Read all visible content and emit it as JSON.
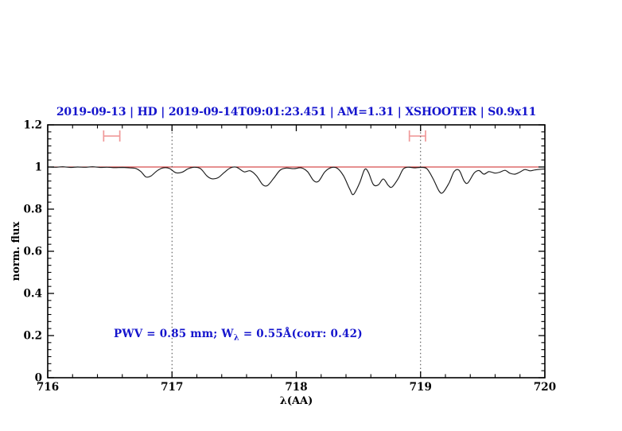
{
  "figure": {
    "title": "2019-09-13 | HD | 2019-09-14T09:01:23.451 | AM=1.31 | XSHOOTER | S0.9x11",
    "title_color": "#1515cd",
    "annotation": {
      "pre": "PWV = 0.85 mm; W",
      "sub": "λ",
      "post": " = 0.55Å(corr: 0.42)",
      "color": "#1515cd"
    }
  },
  "chart_data": {
    "type": "line",
    "title": "2019-09-13 | HD | 2019-09-14T09:01:23.451 | AM=1.31 | XSHOOTER | S0.9x11",
    "xlabel": "λ(AA)",
    "ylabel": "norm. flux",
    "xlim": [
      716,
      720
    ],
    "ylim": [
      0,
      1.2
    ],
    "x_major_ticks": [
      716,
      717,
      718,
      719,
      720
    ],
    "x_tick_labels": [
      "716",
      "717",
      "718",
      "719",
      "720"
    ],
    "x_minor_step": 0.2,
    "y_major_ticks": [
      0,
      0.2,
      0.4,
      0.6,
      0.8,
      1,
      1.2
    ],
    "y_tick_labels": [
      "0",
      "0.2",
      "0.4",
      "0.6",
      "0.8",
      "1",
      "1.2"
    ],
    "y_minor_step": 0.033333,
    "grid": "off",
    "legend": "none",
    "background": "#ffffff",
    "frame_color": "#000000",
    "guide_lines": {
      "x_values": [
        717,
        719
      ],
      "style": "dotted",
      "color": "#444444"
    },
    "continuum_line": {
      "y": 1.0,
      "color": "#cc2222"
    },
    "range_markers": [
      {
        "x1": 716.45,
        "x2": 716.58,
        "y": 1.147,
        "color": "#f09a9a"
      },
      {
        "x1": 718.91,
        "x2": 719.04,
        "y": 1.147,
        "color": "#f09a9a"
      }
    ],
    "series": [
      {
        "name": "observed-spectrum",
        "color": "#1b1b1b",
        "points": [
          [
            716.0,
            1.0
          ],
          [
            716.06,
            0.999
          ],
          [
            716.12,
            1.001
          ],
          [
            716.18,
            0.998
          ],
          [
            716.24,
            1.0
          ],
          [
            716.3,
            0.999
          ],
          [
            716.36,
            1.001
          ],
          [
            716.42,
            0.998
          ],
          [
            716.48,
            0.999
          ],
          [
            716.54,
            0.997
          ],
          [
            716.6,
            0.998
          ],
          [
            716.66,
            0.996
          ],
          [
            716.71,
            0.993
          ],
          [
            716.75,
            0.978
          ],
          [
            716.79,
            0.953
          ],
          [
            716.83,
            0.957
          ],
          [
            716.88,
            0.982
          ],
          [
            716.93,
            0.996
          ],
          [
            716.98,
            0.993
          ],
          [
            717.03,
            0.973
          ],
          [
            717.08,
            0.975
          ],
          [
            717.13,
            0.992
          ],
          [
            717.18,
            0.999
          ],
          [
            717.23,
            0.992
          ],
          [
            717.28,
            0.958
          ],
          [
            717.32,
            0.944
          ],
          [
            717.37,
            0.949
          ],
          [
            717.42,
            0.974
          ],
          [
            717.47,
            0.996
          ],
          [
            717.52,
            0.999
          ],
          [
            717.58,
            0.977
          ],
          [
            717.63,
            0.982
          ],
          [
            717.68,
            0.958
          ],
          [
            717.73,
            0.916
          ],
          [
            717.77,
            0.913
          ],
          [
            717.82,
            0.948
          ],
          [
            717.87,
            0.985
          ],
          [
            717.92,
            0.995
          ],
          [
            717.98,
            0.992
          ],
          [
            718.04,
            0.996
          ],
          [
            718.09,
            0.978
          ],
          [
            718.14,
            0.935
          ],
          [
            718.18,
            0.933
          ],
          [
            718.23,
            0.977
          ],
          [
            718.28,
            0.997
          ],
          [
            718.33,
            0.994
          ],
          [
            718.38,
            0.958
          ],
          [
            718.43,
            0.895
          ],
          [
            718.46,
            0.87
          ],
          [
            718.51,
            0.925
          ],
          [
            718.55,
            0.988
          ],
          [
            718.58,
            0.975
          ],
          [
            718.62,
            0.917
          ],
          [
            718.66,
            0.915
          ],
          [
            718.7,
            0.943
          ],
          [
            718.74,
            0.913
          ],
          [
            718.77,
            0.905
          ],
          [
            718.82,
            0.945
          ],
          [
            718.86,
            0.99
          ],
          [
            718.9,
            0.999
          ],
          [
            718.95,
            0.996
          ],
          [
            719.0,
            0.998
          ],
          [
            719.05,
            0.992
          ],
          [
            719.1,
            0.945
          ],
          [
            719.15,
            0.885
          ],
          [
            719.18,
            0.879
          ],
          [
            719.23,
            0.925
          ],
          [
            719.27,
            0.978
          ],
          [
            719.31,
            0.984
          ],
          [
            719.35,
            0.934
          ],
          [
            719.38,
            0.924
          ],
          [
            719.43,
            0.97
          ],
          [
            719.47,
            0.983
          ],
          [
            719.51,
            0.966
          ],
          [
            719.55,
            0.978
          ],
          [
            719.6,
            0.971
          ],
          [
            719.64,
            0.976
          ],
          [
            719.68,
            0.984
          ],
          [
            719.72,
            0.97
          ],
          [
            719.76,
            0.966
          ],
          [
            719.8,
            0.976
          ],
          [
            719.84,
            0.988
          ],
          [
            719.88,
            0.982
          ],
          [
            719.92,
            0.986
          ],
          [
            719.96,
            0.989
          ],
          [
            720.0,
            0.991
          ]
        ]
      }
    ]
  }
}
